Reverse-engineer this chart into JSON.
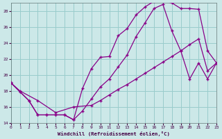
{
  "xlabel": "Windchill (Refroidissement éolien,°C)",
  "bg_color": "#cce8e8",
  "grid_color": "#99cccc",
  "line_color": "#880088",
  "xlim": [
    0,
    23
  ],
  "ylim": [
    14,
    29
  ],
  "xticks": [
    0,
    1,
    2,
    3,
    4,
    5,
    6,
    7,
    8,
    9,
    10,
    11,
    12,
    13,
    14,
    15,
    16,
    17,
    18,
    19,
    20,
    21,
    22,
    23
  ],
  "yticks": [
    14,
    16,
    18,
    20,
    22,
    24,
    26,
    28
  ],
  "line1_x": [
    0,
    1,
    2,
    3,
    4,
    5,
    6,
    7,
    8,
    9,
    10,
    11,
    12,
    13,
    14,
    15,
    16,
    17,
    18,
    19,
    20,
    21,
    22,
    23
  ],
  "line1_y": [
    19.0,
    17.9,
    16.8,
    15.0,
    15.0,
    15.0,
    15.0,
    14.4,
    18.3,
    20.8,
    22.2,
    22.3,
    24.9,
    25.8,
    27.5,
    28.5,
    29.2,
    29.2,
    29.0,
    28.3,
    28.3,
    28.2,
    23.0,
    21.5
  ],
  "line2_x": [
    0,
    1,
    2,
    3,
    4,
    5,
    6,
    7,
    8,
    9,
    10,
    11,
    12,
    13,
    14,
    15,
    16,
    17,
    18,
    19,
    20,
    21,
    22,
    23
  ],
  "line2_y": [
    19.0,
    17.9,
    16.8,
    15.0,
    15.0,
    15.0,
    15.0,
    14.4,
    15.5,
    17.0,
    18.5,
    19.5,
    21.0,
    22.5,
    24.8,
    26.5,
    28.3,
    28.8,
    25.5,
    23.0,
    19.5,
    21.5,
    19.5,
    21.5
  ],
  "line3_x": [
    0,
    1,
    3,
    5,
    7,
    9,
    10,
    11,
    12,
    13,
    14,
    15,
    16,
    17,
    18,
    19,
    20,
    21,
    22,
    23
  ],
  "line3_y": [
    19.0,
    18.0,
    16.8,
    15.3,
    16.0,
    16.2,
    16.8,
    17.5,
    18.2,
    18.8,
    19.5,
    20.2,
    20.9,
    21.6,
    22.3,
    23.0,
    23.8,
    24.5,
    20.5,
    21.5
  ]
}
